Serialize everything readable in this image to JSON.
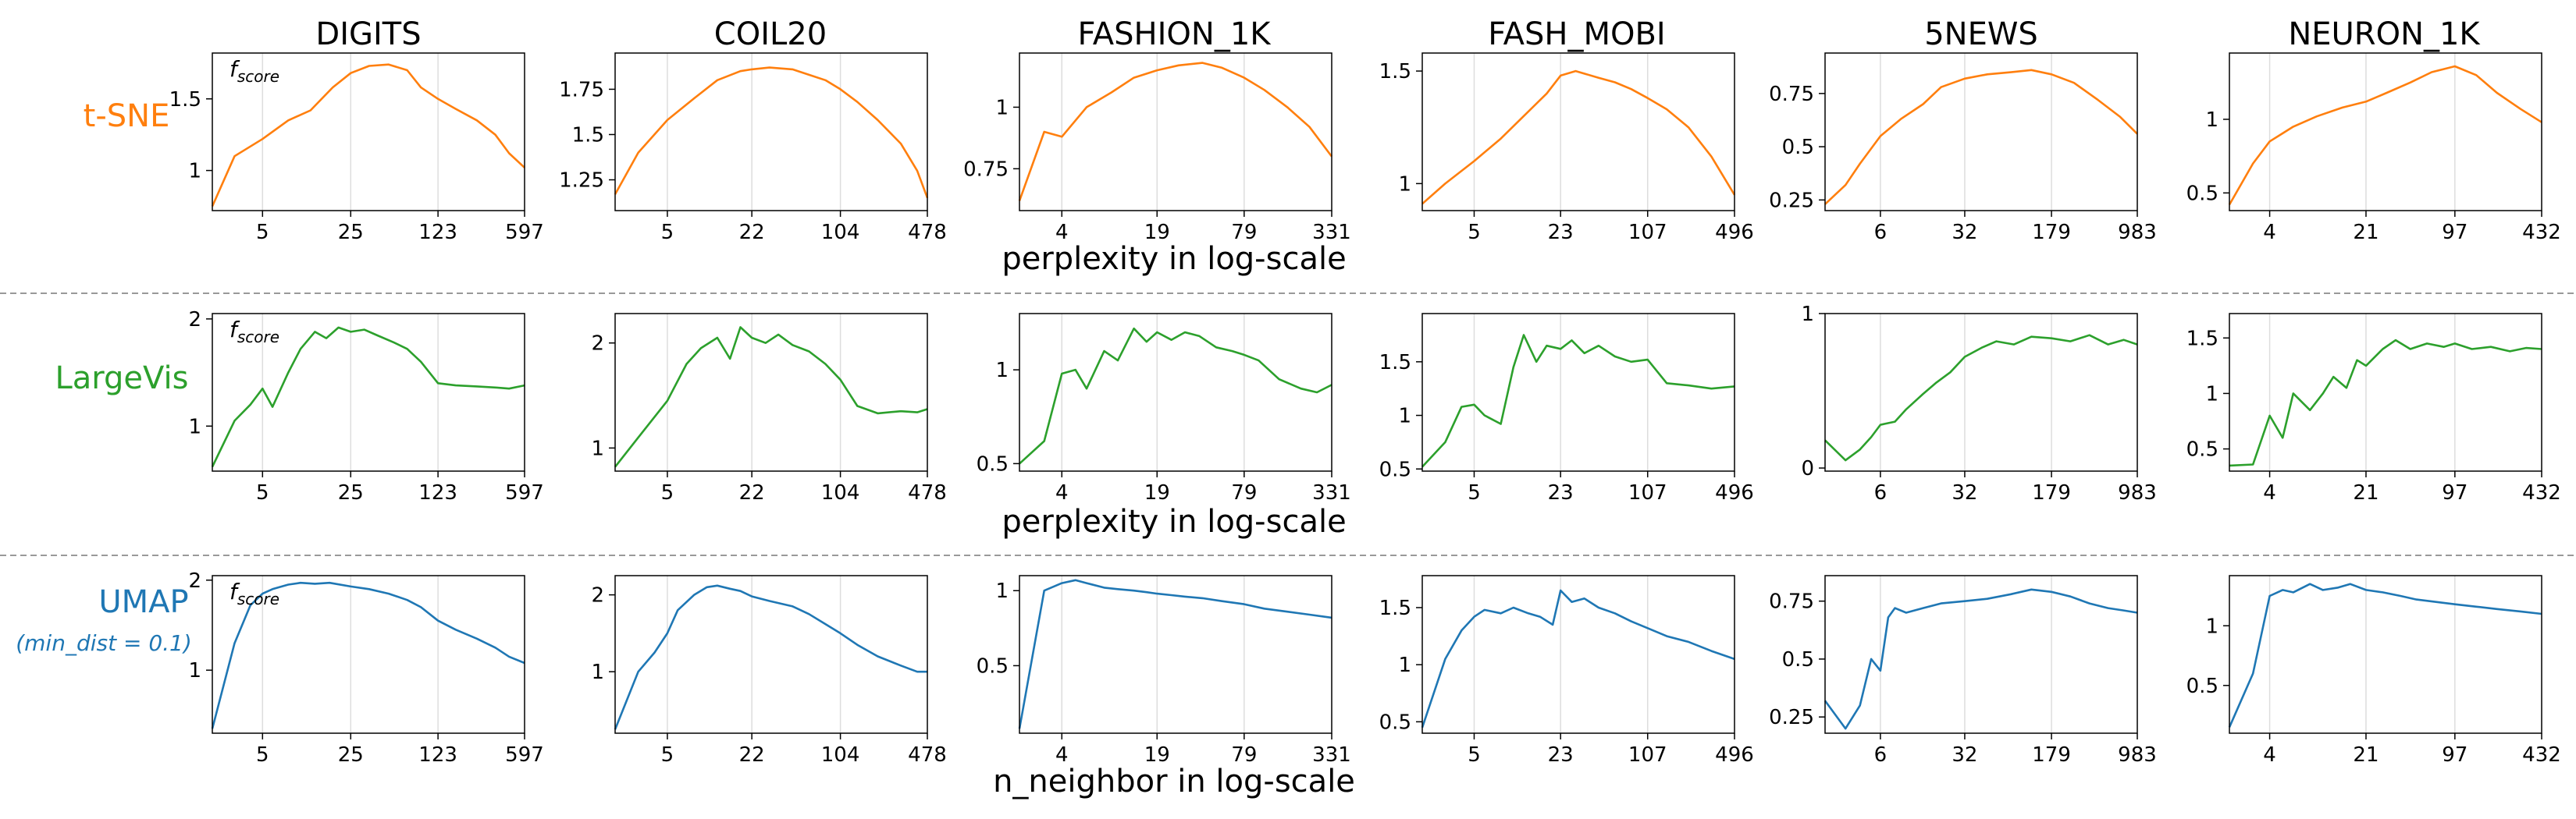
{
  "colors": {
    "tsne": "#ff7f0e",
    "largevis": "#2ca02c",
    "umap": "#1f77b4",
    "grid": "#dddddd",
    "separator": "#999999"
  },
  "datasets": [
    "DIGITS",
    "COIL20",
    "FASHION_1K",
    "FASH_MOBI",
    "5NEWS",
    "NEURON_1K"
  ],
  "rows": [
    {
      "label": "t-SNE",
      "sublabel": "",
      "color": "#ff7f0e",
      "xlabel": "perplexity in log-scale",
      "metric_label": "f_score"
    },
    {
      "label": "LargeVis",
      "sublabel": "",
      "color": "#2ca02c",
      "xlabel": "perplexity in log-scale",
      "metric_label": "f_score"
    },
    {
      "label": "UMAP",
      "sublabel": "(min_dist = 0.1)",
      "color": "#1f77b4",
      "xlabel": "n_neighbor in log-scale",
      "metric_label": "f_score"
    }
  ],
  "chart_data": [
    {
      "type": "line",
      "row": "t-SNE",
      "title": "DIGITS",
      "xscale": "log",
      "xlim": [
        2,
        597
      ],
      "ylim": [
        0.72,
        1.82
      ],
      "xticks": [
        5,
        25,
        123,
        597
      ],
      "yticks": [
        1.0,
        1.5
      ],
      "grid": "x",
      "x": [
        2,
        3,
        5,
        8,
        12,
        18,
        25,
        35,
        50,
        70,
        90,
        123,
        170,
        250,
        350,
        450,
        597
      ],
      "y": [
        0.75,
        1.1,
        1.22,
        1.35,
        1.42,
        1.58,
        1.68,
        1.73,
        1.74,
        1.7,
        1.58,
        1.5,
        1.43,
        1.35,
        1.25,
        1.12,
        1.02
      ]
    },
    {
      "type": "line",
      "row": "t-SNE",
      "title": "COIL20",
      "xscale": "log",
      "xlim": [
        2,
        478
      ],
      "ylim": [
        1.08,
        1.95
      ],
      "xticks": [
        5,
        22,
        104,
        478
      ],
      "yticks": [
        1.25,
        1.5,
        1.75
      ],
      "grid": "x",
      "x": [
        2,
        3,
        5,
        8,
        12,
        18,
        22,
        30,
        45,
        60,
        80,
        104,
        140,
        200,
        300,
        400,
        478
      ],
      "y": [
        1.17,
        1.4,
        1.58,
        1.7,
        1.8,
        1.85,
        1.86,
        1.87,
        1.86,
        1.83,
        1.8,
        1.75,
        1.68,
        1.58,
        1.45,
        1.3,
        1.15
      ]
    },
    {
      "type": "line",
      "row": "t-SNE",
      "title": "FASHION_1K",
      "xscale": "log",
      "xlim": [
        2,
        331
      ],
      "ylim": [
        0.58,
        1.22
      ],
      "xticks": [
        4,
        19,
        79,
        331
      ],
      "yticks": [
        0.75,
        1.0
      ],
      "grid": "x",
      "x": [
        2,
        3,
        4,
        6,
        9,
        13,
        19,
        27,
        40,
        55,
        79,
        110,
        160,
        230,
        331
      ],
      "y": [
        0.62,
        0.9,
        0.88,
        1.0,
        1.06,
        1.12,
        1.15,
        1.17,
        1.18,
        1.16,
        1.12,
        1.07,
        1.0,
        0.92,
        0.8
      ]
    },
    {
      "type": "line",
      "row": "t-SNE",
      "title": "FASH_MOBI",
      "xscale": "log",
      "xlim": [
        2,
        496
      ],
      "ylim": [
        0.88,
        1.58
      ],
      "xticks": [
        5,
        23,
        107,
        496
      ],
      "yticks": [
        1.0,
        1.5
      ],
      "grid": "x",
      "x": [
        2,
        3,
        5,
        8,
        12,
        18,
        23,
        30,
        45,
        60,
        80,
        107,
        150,
        220,
        330,
        496
      ],
      "y": [
        0.91,
        1.0,
        1.1,
        1.2,
        1.3,
        1.4,
        1.48,
        1.5,
        1.47,
        1.45,
        1.42,
        1.38,
        1.33,
        1.25,
        1.12,
        0.95
      ]
    },
    {
      "type": "line",
      "row": "t-SNE",
      "title": "5NEWS",
      "xscale": "log",
      "xlim": [
        2,
        983
      ],
      "ylim": [
        0.2,
        0.94
      ],
      "xticks": [
        6,
        32,
        179,
        983
      ],
      "yticks": [
        0.25,
        0.5,
        0.75
      ],
      "grid": "x",
      "x": [
        2,
        3,
        4,
        6,
        9,
        14,
        20,
        32,
        50,
        80,
        120,
        179,
        280,
        450,
        700,
        983
      ],
      "y": [
        0.23,
        0.32,
        0.42,
        0.55,
        0.63,
        0.7,
        0.78,
        0.82,
        0.84,
        0.85,
        0.86,
        0.84,
        0.8,
        0.72,
        0.64,
        0.56
      ]
    },
    {
      "type": "line",
      "row": "t-SNE",
      "title": "NEURON_1K",
      "xscale": "log",
      "xlim": [
        2,
        432
      ],
      "ylim": [
        0.38,
        1.45
      ],
      "xticks": [
        4,
        21,
        97,
        432
      ],
      "yticks": [
        0.5,
        1.0
      ],
      "grid": "x",
      "x": [
        2,
        3,
        4,
        6,
        9,
        14,
        21,
        30,
        45,
        65,
        97,
        140,
        200,
        300,
        432
      ],
      "y": [
        0.42,
        0.7,
        0.85,
        0.95,
        1.02,
        1.08,
        1.12,
        1.18,
        1.25,
        1.32,
        1.36,
        1.3,
        1.18,
        1.07,
        0.98
      ]
    },
    {
      "type": "line",
      "row": "LargeVis",
      "title": "DIGITS",
      "xscale": "log",
      "xlim": [
        2,
        597
      ],
      "ylim": [
        0.58,
        2.05
      ],
      "xticks": [
        5,
        25,
        123,
        597
      ],
      "yticks": [
        1,
        2
      ],
      "grid": "x",
      "x": [
        2,
        3,
        4,
        5,
        6,
        8,
        10,
        13,
        16,
        20,
        25,
        32,
        40,
        55,
        70,
        90,
        123,
        170,
        250,
        350,
        450,
        597
      ],
      "y": [
        0.62,
        1.05,
        1.2,
        1.35,
        1.18,
        1.5,
        1.72,
        1.88,
        1.82,
        1.92,
        1.88,
        1.9,
        1.85,
        1.78,
        1.72,
        1.6,
        1.4,
        1.38,
        1.37,
        1.36,
        1.35,
        1.38
      ]
    },
    {
      "type": "line",
      "row": "LargeVis",
      "title": "COIL20",
      "xscale": "log",
      "xlim": [
        2,
        478
      ],
      "ylim": [
        0.78,
        2.28
      ],
      "xticks": [
        5,
        22,
        104,
        478
      ],
      "yticks": [
        1,
        2
      ],
      "grid": "x",
      "x": [
        2,
        3,
        5,
        7,
        9,
        12,
        15,
        18,
        22,
        28,
        35,
        45,
        60,
        80,
        104,
        140,
        200,
        300,
        400,
        478
      ],
      "y": [
        0.82,
        1.1,
        1.45,
        1.8,
        1.95,
        2.05,
        1.85,
        2.15,
        2.05,
        2.0,
        2.08,
        1.98,
        1.92,
        1.8,
        1.65,
        1.4,
        1.33,
        1.35,
        1.34,
        1.37
      ]
    },
    {
      "type": "line",
      "row": "LargeVis",
      "title": "FASHION_1K",
      "xscale": "log",
      "xlim": [
        2,
        331
      ],
      "ylim": [
        0.46,
        1.3
      ],
      "xticks": [
        4,
        19,
        79,
        331
      ],
      "yticks": [
        0.5,
        1.0
      ],
      "grid": "x",
      "x": [
        2,
        3,
        4,
        5,
        6,
        8,
        10,
        13,
        16,
        19,
        24,
        30,
        38,
        50,
        65,
        79,
        100,
        140,
        200,
        260,
        331
      ],
      "y": [
        0.5,
        0.62,
        0.98,
        1.0,
        0.9,
        1.1,
        1.05,
        1.22,
        1.15,
        1.2,
        1.16,
        1.2,
        1.18,
        1.12,
        1.1,
        1.08,
        1.05,
        0.95,
        0.9,
        0.88,
        0.92
      ]
    },
    {
      "type": "line",
      "row": "LargeVis",
      "title": "FASH_MOBI",
      "xscale": "log",
      "xlim": [
        2,
        496
      ],
      "ylim": [
        0.48,
        1.95
      ],
      "xticks": [
        5,
        23,
        107,
        496
      ],
      "yticks": [
        0.5,
        1.0,
        1.5
      ],
      "grid": "x",
      "x": [
        2,
        3,
        4,
        5,
        6,
        8,
        10,
        12,
        15,
        18,
        23,
        28,
        35,
        45,
        60,
        80,
        107,
        150,
        220,
        330,
        496
      ],
      "y": [
        0.52,
        0.75,
        1.08,
        1.1,
        1.0,
        0.92,
        1.45,
        1.75,
        1.5,
        1.65,
        1.62,
        1.7,
        1.58,
        1.65,
        1.55,
        1.5,
        1.52,
        1.3,
        1.28,
        1.25,
        1.27
      ]
    },
    {
      "type": "line",
      "row": "LargeVis",
      "title": "5NEWS",
      "xscale": "log",
      "xlim": [
        2,
        983
      ],
      "ylim": [
        -0.02,
        1.0
      ],
      "xticks": [
        6,
        32,
        179,
        983
      ],
      "yticks": [
        0,
        1
      ],
      "grid": "x",
      "x": [
        2,
        3,
        4,
        5,
        6,
        8,
        10,
        14,
        18,
        24,
        32,
        45,
        60,
        85,
        120,
        179,
        260,
        380,
        550,
        750,
        983
      ],
      "y": [
        0.18,
        0.05,
        0.12,
        0.2,
        0.28,
        0.3,
        0.38,
        0.48,
        0.55,
        0.62,
        0.72,
        0.78,
        0.82,
        0.8,
        0.85,
        0.84,
        0.82,
        0.86,
        0.8,
        0.83,
        0.8
      ]
    },
    {
      "type": "line",
      "row": "LargeVis",
      "title": "NEURON_1K",
      "xscale": "log",
      "xlim": [
        2,
        432
      ],
      "ylim": [
        0.3,
        1.72
      ],
      "xticks": [
        4,
        21,
        97,
        432
      ],
      "yticks": [
        0.5,
        1.0,
        1.5
      ],
      "grid": "x",
      "x": [
        2,
        3,
        4,
        5,
        6,
        8,
        10,
        12,
        15,
        18,
        21,
        28,
        35,
        45,
        60,
        80,
        97,
        130,
        180,
        250,
        330,
        432
      ],
      "y": [
        0.35,
        0.36,
        0.8,
        0.6,
        1.0,
        0.85,
        1.0,
        1.15,
        1.05,
        1.3,
        1.25,
        1.4,
        1.48,
        1.4,
        1.45,
        1.42,
        1.45,
        1.4,
        1.42,
        1.38,
        1.41,
        1.4
      ]
    },
    {
      "type": "line",
      "row": "UMAP",
      "title": "DIGITS",
      "xscale": "log",
      "xlim": [
        2,
        597
      ],
      "ylim": [
        0.3,
        2.05
      ],
      "xticks": [
        5,
        25,
        123,
        597
      ],
      "yticks": [
        1,
        2
      ],
      "grid": "x",
      "x": [
        2,
        3,
        4,
        5,
        6,
        8,
        10,
        13,
        17,
        25,
        35,
        50,
        70,
        90,
        123,
        170,
        250,
        350,
        450,
        597
      ],
      "y": [
        0.35,
        1.3,
        1.72,
        1.85,
        1.9,
        1.95,
        1.97,
        1.96,
        1.97,
        1.93,
        1.9,
        1.85,
        1.78,
        1.7,
        1.55,
        1.45,
        1.35,
        1.25,
        1.15,
        1.08
      ]
    },
    {
      "type": "line",
      "row": "UMAP",
      "title": "COIL20",
      "xscale": "log",
      "xlim": [
        2,
        478
      ],
      "ylim": [
        0.2,
        2.25
      ],
      "xticks": [
        5,
        22,
        104,
        478
      ],
      "yticks": [
        1,
        2
      ],
      "grid": "x",
      "x": [
        2,
        3,
        4,
        5,
        6,
        8,
        10,
        12,
        15,
        18,
        22,
        30,
        45,
        60,
        80,
        104,
        140,
        200,
        300,
        400,
        478
      ],
      "y": [
        0.25,
        1.0,
        1.25,
        1.5,
        1.8,
        2.0,
        2.1,
        2.12,
        2.08,
        2.05,
        1.98,
        1.92,
        1.85,
        1.75,
        1.62,
        1.5,
        1.35,
        1.2,
        1.08,
        1.0,
        1.0
      ]
    },
    {
      "type": "line",
      "row": "UMAP",
      "title": "FASHION_1K",
      "xscale": "log",
      "xlim": [
        2,
        331
      ],
      "ylim": [
        0.05,
        1.1
      ],
      "xticks": [
        4,
        19,
        79,
        331
      ],
      "yticks": [
        0.5,
        1.0
      ],
      "grid": "x",
      "x": [
        2,
        3,
        4,
        5,
        6,
        8,
        10,
        13,
        16,
        19,
        24,
        30,
        40,
        55,
        79,
        110,
        160,
        230,
        331
      ],
      "y": [
        0.08,
        1.0,
        1.05,
        1.07,
        1.05,
        1.02,
        1.01,
        1.0,
        0.99,
        0.98,
        0.97,
        0.96,
        0.95,
        0.93,
        0.91,
        0.88,
        0.86,
        0.84,
        0.82
      ]
    },
    {
      "type": "line",
      "row": "UMAP",
      "title": "FASH_MOBI",
      "xscale": "log",
      "xlim": [
        2,
        496
      ],
      "ylim": [
        0.4,
        1.78
      ],
      "xticks": [
        5,
        23,
        107,
        496
      ],
      "yticks": [
        0.5,
        1.0,
        1.5
      ],
      "grid": "x",
      "x": [
        2,
        3,
        4,
        5,
        6,
        8,
        10,
        13,
        16,
        20,
        23,
        28,
        35,
        45,
        60,
        80,
        107,
        150,
        220,
        330,
        496
      ],
      "y": [
        0.45,
        1.05,
        1.3,
        1.42,
        1.48,
        1.45,
        1.5,
        1.45,
        1.42,
        1.35,
        1.65,
        1.55,
        1.58,
        1.5,
        1.45,
        1.38,
        1.32,
        1.25,
        1.2,
        1.12,
        1.05
      ]
    },
    {
      "type": "line",
      "row": "UMAP",
      "title": "5NEWS",
      "xscale": "log",
      "xlim": [
        2,
        983
      ],
      "ylim": [
        0.18,
        0.86
      ],
      "xticks": [
        6,
        32,
        179,
        983
      ],
      "yticks": [
        0.25,
        0.5,
        0.75
      ],
      "grid": "x",
      "x": [
        2,
        3,
        4,
        5,
        6,
        7,
        8,
        10,
        14,
        20,
        32,
        50,
        80,
        120,
        179,
        260,
        380,
        550,
        750,
        983
      ],
      "y": [
        0.32,
        0.2,
        0.3,
        0.5,
        0.45,
        0.68,
        0.72,
        0.7,
        0.72,
        0.74,
        0.75,
        0.76,
        0.78,
        0.8,
        0.79,
        0.77,
        0.74,
        0.72,
        0.71,
        0.7
      ]
    },
    {
      "type": "line",
      "row": "UMAP",
      "title": "NEURON_1K",
      "xscale": "log",
      "xlim": [
        2,
        432
      ],
      "ylim": [
        0.1,
        1.42
      ],
      "xticks": [
        4,
        21,
        97,
        432
      ],
      "yticks": [
        0.5,
        1.0
      ],
      "grid": "x",
      "x": [
        2,
        3,
        4,
        5,
        6,
        8,
        10,
        13,
        16,
        21,
        28,
        38,
        50,
        70,
        97,
        140,
        200,
        300,
        432
      ],
      "y": [
        0.15,
        0.6,
        1.25,
        1.3,
        1.28,
        1.35,
        1.3,
        1.32,
        1.35,
        1.3,
        1.28,
        1.25,
        1.22,
        1.2,
        1.18,
        1.16,
        1.14,
        1.12,
        1.1
      ]
    }
  ]
}
